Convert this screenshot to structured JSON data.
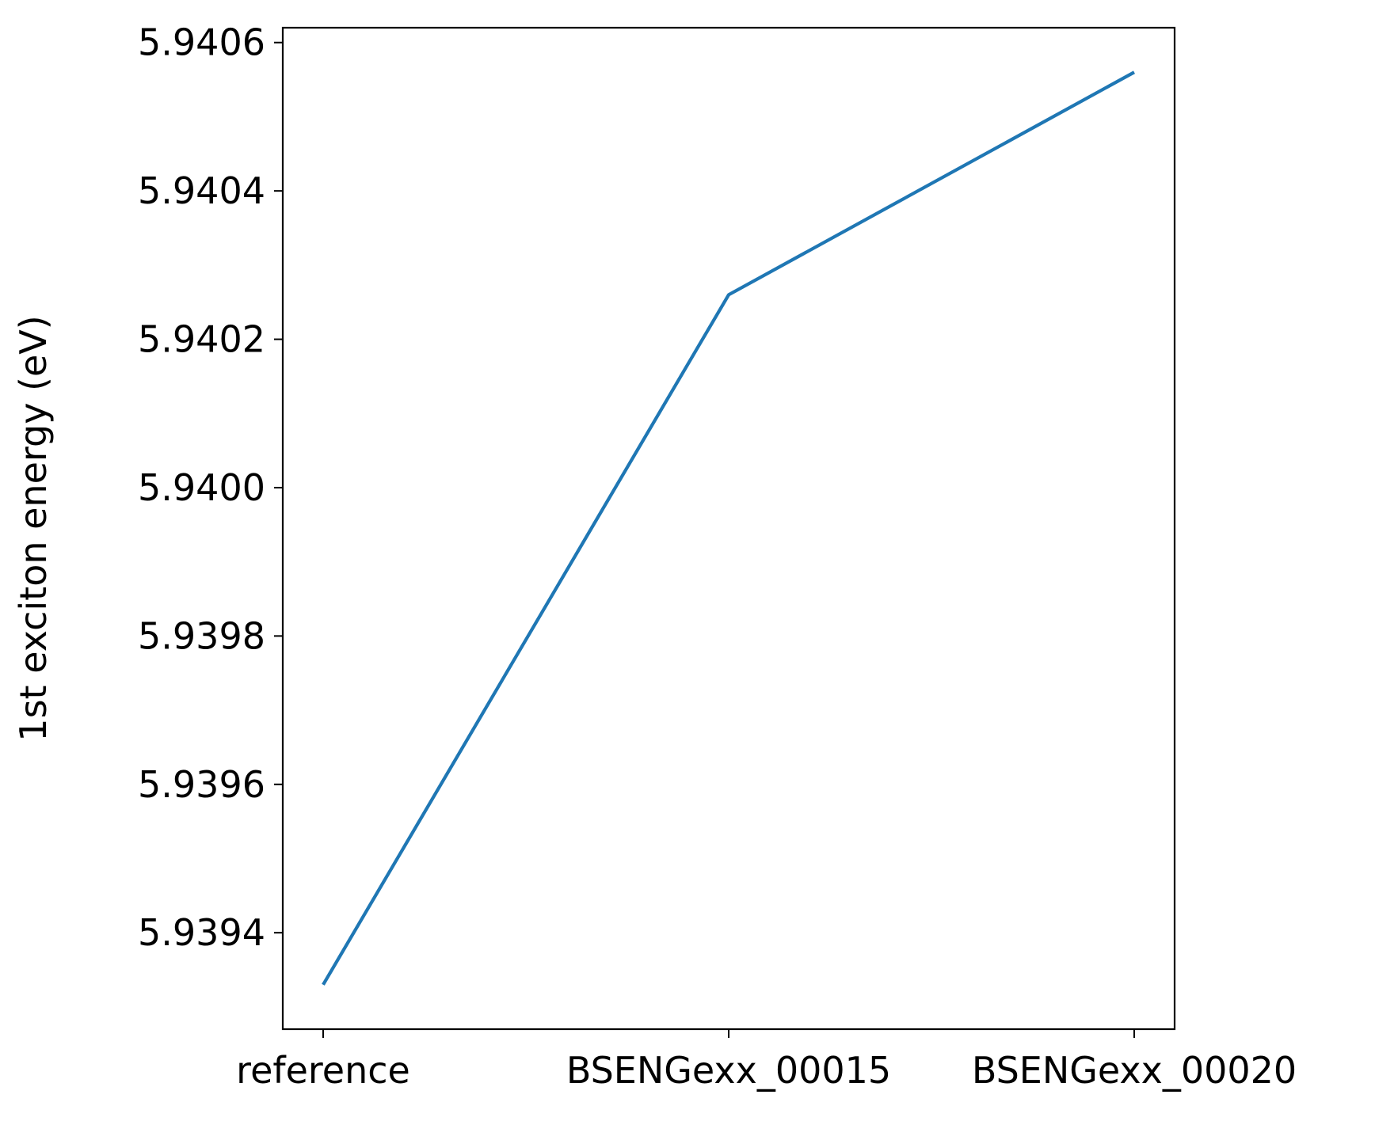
{
  "chart_data": {
    "type": "line",
    "categories": [
      "reference",
      "BSENGexx_00015",
      "BSENGexx_00020"
    ],
    "series": [
      {
        "values": [
          5.93933,
          5.94026,
          5.94056
        ],
        "color": "#1f77b4"
      }
    ],
    "xlabel": "",
    "ylabel": "1st exciton energy (eV)",
    "ylim": [
      5.93927,
      5.94062
    ],
    "yticks": [
      5.9394,
      5.9396,
      5.9398,
      5.94,
      5.9402,
      5.9404,
      5.9406
    ],
    "ytick_labels": [
      "5.9394",
      "5.9396",
      "5.9398",
      "5.9400",
      "5.9402",
      "5.9404",
      "5.9406"
    ],
    "grid": false,
    "legend": "none"
  }
}
